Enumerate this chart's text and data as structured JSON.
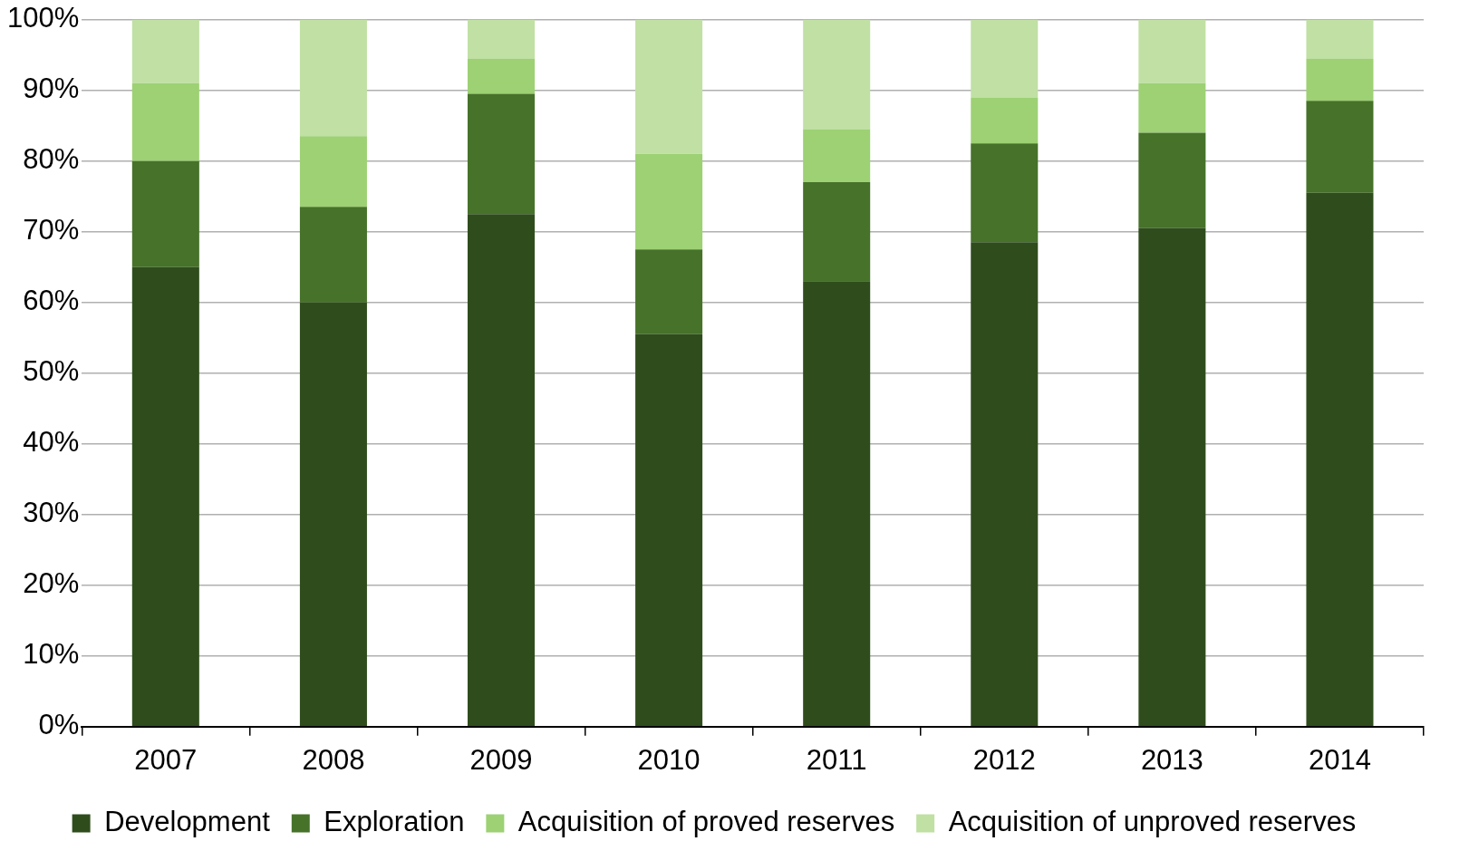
{
  "chart_data": {
    "type": "bar",
    "stacked": true,
    "categories": [
      "2007",
      "2008",
      "2009",
      "2010",
      "2011",
      "2012",
      "2013",
      "2014"
    ],
    "series": [
      {
        "name": "Development",
        "color": "#2f4d1c",
        "values": [
          65,
          60,
          72.5,
          55.5,
          63,
          68.5,
          70.5,
          75.5
        ]
      },
      {
        "name": "Exploration",
        "color": "#467229",
        "values": [
          15,
          13.5,
          17,
          12,
          14,
          14,
          13.5,
          13
        ]
      },
      {
        "name": "Acquisition of proved reserves",
        "color": "#9dd174",
        "values": [
          11,
          10,
          5,
          13.5,
          7.5,
          6.5,
          7,
          6
        ]
      },
      {
        "name": "Acquisition of unproved reserves",
        "color": "#c0e0a4",
        "values": [
          9,
          16.5,
          5.5,
          19,
          15.5,
          11,
          9,
          5.5
        ]
      }
    ],
    "ylim": [
      0,
      100
    ],
    "yticks": [
      {
        "value": 0,
        "label": "0%"
      },
      {
        "value": 10,
        "label": "10%"
      },
      {
        "value": 20,
        "label": "20%"
      },
      {
        "value": 30,
        "label": "30%"
      },
      {
        "value": 40,
        "label": "40%"
      },
      {
        "value": 50,
        "label": "50%"
      },
      {
        "value": 60,
        "label": "60%"
      },
      {
        "value": 70,
        "label": "70%"
      },
      {
        "value": 80,
        "label": "80%"
      },
      {
        "value": 90,
        "label": "90%"
      },
      {
        "value": 100,
        "label": "100%"
      }
    ],
    "grid": "y",
    "legend": "bottom"
  }
}
